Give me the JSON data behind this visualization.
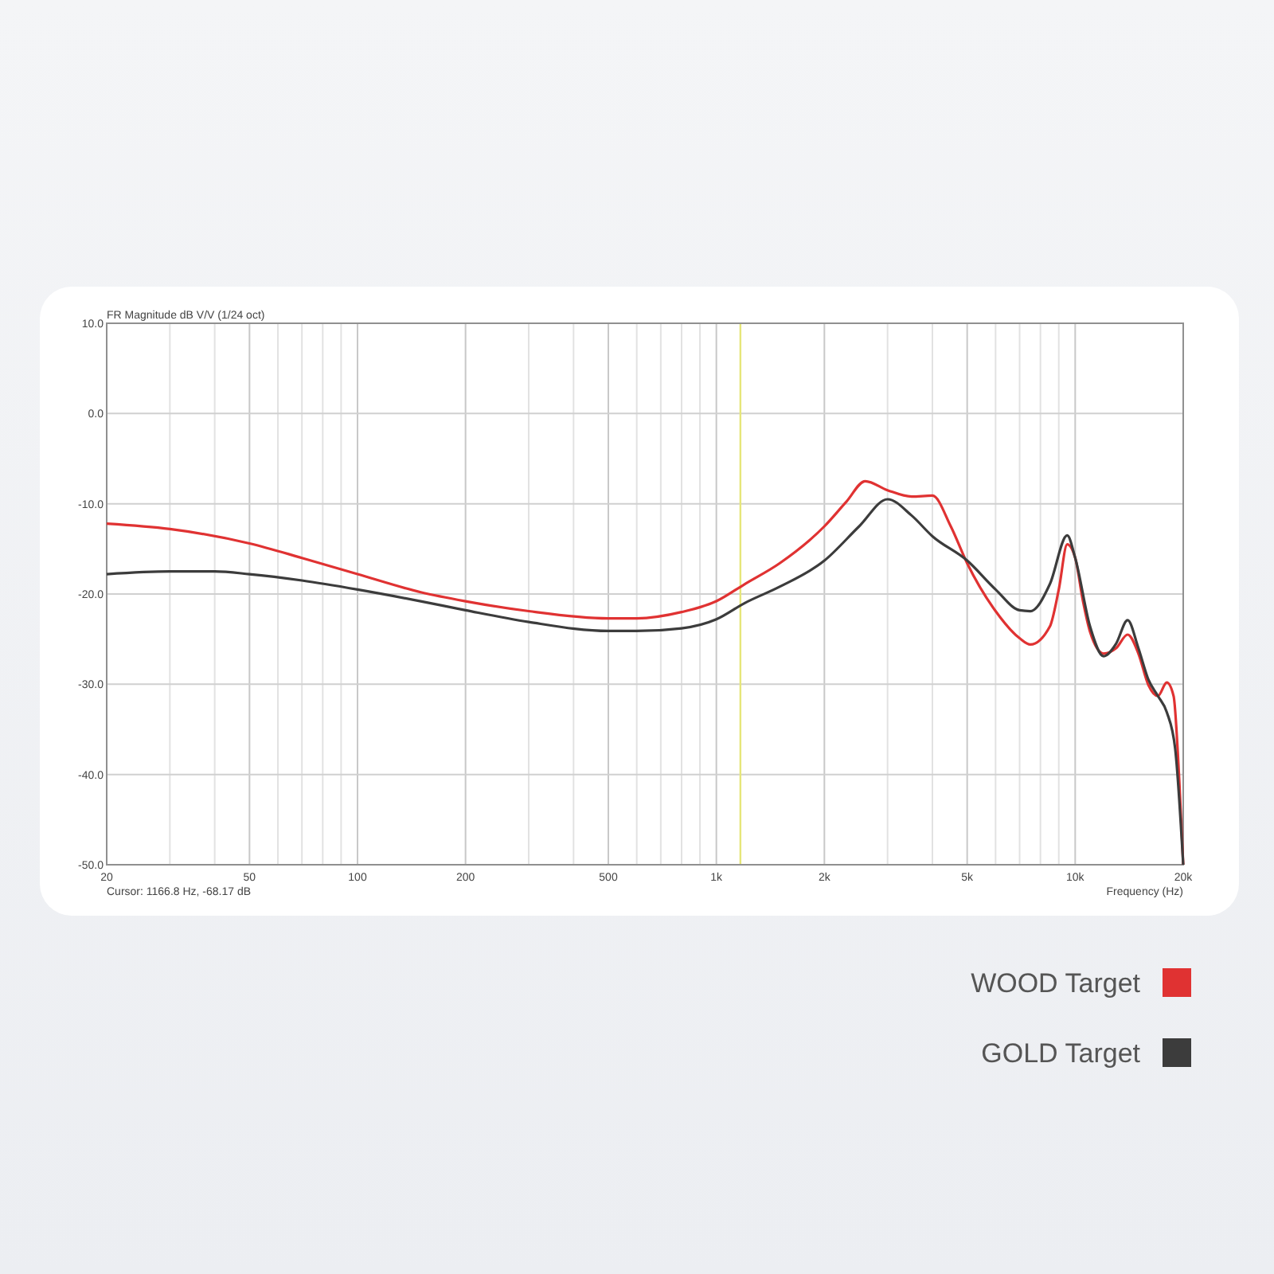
{
  "chart_data": {
    "type": "line",
    "title": "FR Magnitude dB V/V (1/24 oct)",
    "xlabel": "Frequency (Hz)",
    "annotations": [
      "Cursor: 1166.8 Hz, -68.17 dB"
    ],
    "log": "x",
    "grid": true,
    "legend": "bottom right",
    "marker": "none",
    "line_style": "solid",
    "xlim": [
      20,
      20000
    ],
    "ylim": [
      -50,
      10
    ],
    "xticks": [
      20,
      {
        "value": 30,
        "label": null
      },
      {
        "value": 40,
        "label": null
      },
      50,
      {
        "value": 60,
        "label": null
      },
      {
        "value": 70,
        "label": null
      },
      {
        "value": 80,
        "label": null
      },
      {
        "value": 90,
        "label": null
      },
      100,
      200,
      {
        "value": 300,
        "label": null
      },
      {
        "value": 400,
        "label": null
      },
      500,
      {
        "value": 600,
        "label": null
      },
      {
        "value": 700,
        "label": null
      },
      {
        "value": 800,
        "label": null
      },
      {
        "value": 900,
        "label": null
      },
      {
        "value": 1000,
        "label": "1k"
      },
      {
        "value": 2000,
        "label": "2k"
      },
      {
        "value": 3000,
        "label": null
      },
      {
        "value": 4000,
        "label": null
      },
      {
        "value": 5000,
        "label": "5k"
      },
      {
        "value": 6000,
        "label": null
      },
      {
        "value": 7000,
        "label": null
      },
      {
        "value": 8000,
        "label": null
      },
      {
        "value": 9000,
        "label": null
      },
      {
        "value": 10000,
        "label": "10k"
      },
      {
        "value": 20000,
        "label": "20k"
      }
    ],
    "yticks": [
      {
        "value": 10,
        "label": "10.0"
      },
      {
        "value": 0,
        "label": "0.0"
      },
      {
        "value": -10,
        "label": "-10.0"
      },
      {
        "value": -20,
        "label": "-20.0"
      },
      {
        "value": -30,
        "label": "-30.0"
      },
      {
        "value": -40,
        "label": "-40.0"
      },
      {
        "value": -50,
        "label": "-50.0"
      }
    ],
    "ref_lines": [
      {
        "axis": "x",
        "value": 1166.8,
        "color": "#e6e67a"
      }
    ],
    "series": [
      {
        "name": "WOOD Target",
        "color": "#e03232",
        "x": [
          20,
          30,
          50,
          70,
          100,
          150,
          200,
          300,
          500,
          600,
          800,
          1000,
          1200,
          1500,
          2000,
          2300,
          2600,
          3000,
          3500,
          4000,
          4500,
          5000,
          6000,
          7000,
          7500,
          8500,
          9000,
          9500,
          10000,
          10500,
          11000,
          12000,
          13000,
          14000,
          15000,
          16000,
          17000,
          18000,
          18800,
          19500,
          20000
        ],
        "values": [
          -12.2,
          -12.8,
          -14.4,
          -16.0,
          -17.8,
          -19.8,
          -20.8,
          -21.9,
          -22.7,
          -22.7,
          -22.0,
          -20.8,
          -18.9,
          -16.6,
          -12.5,
          -9.8,
          -7.5,
          -8.5,
          -9.2,
          -9.1,
          -12.5,
          -16.6,
          -21.9,
          -24.9,
          -25.6,
          -23.6,
          -19.5,
          -14.5,
          -16.0,
          -20.7,
          -24.2,
          -26.6,
          -26.0,
          -24.5,
          -26.6,
          -30.1,
          -31.3,
          -29.8,
          -31.3,
          -40.7,
          -50
        ]
      },
      {
        "name": "GOLD Target",
        "color": "#3c3c3c",
        "x": [
          20,
          30,
          40,
          50,
          70,
          100,
          150,
          200,
          300,
          500,
          600,
          800,
          1000,
          1200,
          1500,
          2000,
          2500,
          3000,
          3500,
          4000,
          5000,
          6000,
          7000,
          7500,
          8500,
          9500,
          10000,
          11000,
          12000,
          13000,
          14000,
          15000,
          16000,
          17000,
          18000,
          19000,
          20000
        ],
        "values": [
          -17.8,
          -17.5,
          -17.5,
          -17.8,
          -18.5,
          -19.5,
          -20.8,
          -21.8,
          -23.1,
          -24.1,
          -24.1,
          -23.8,
          -22.8,
          -21.0,
          -19.2,
          -16.3,
          -12.5,
          -9.5,
          -11.3,
          -13.6,
          -16.3,
          -19.5,
          -21.8,
          -21.9,
          -18.9,
          -13.5,
          -16.0,
          -23.6,
          -26.9,
          -25.5,
          -22.9,
          -26.0,
          -29.5,
          -31.3,
          -33.1,
          -37.2,
          -50
        ]
      }
    ]
  }
}
